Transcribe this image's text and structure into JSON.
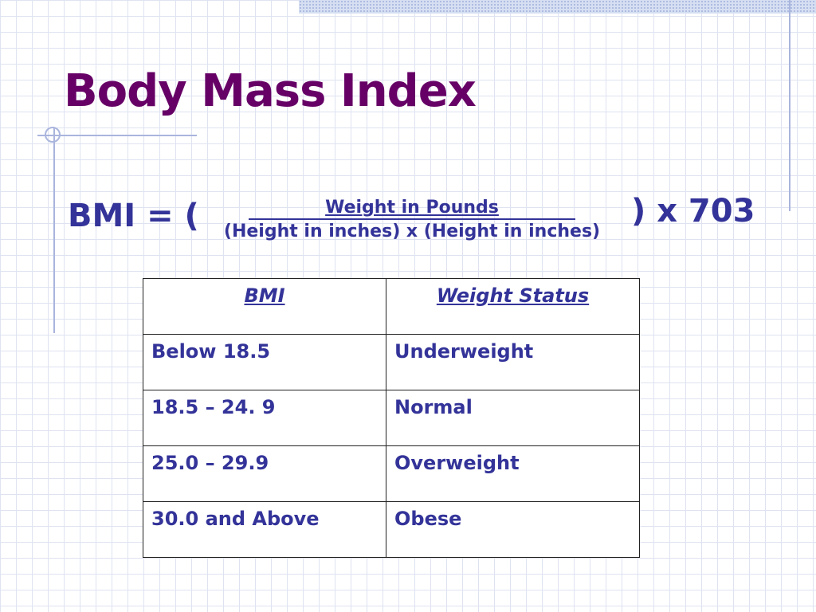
{
  "title": "Body Mass Index",
  "formula": {
    "lhs": "BMI = (",
    "numerator": "Weight in Pounds",
    "denominator": "(Height in inches) x (Height in inches)",
    "rhs": ") x 703"
  },
  "table": {
    "headers": [
      "BMI",
      "Weight Status"
    ],
    "rows": [
      [
        "Below 18.5",
        "Underweight"
      ],
      [
        "18.5 – 24. 9",
        "Normal"
      ],
      [
        "25.0 – 29.9",
        "Overweight"
      ],
      [
        "30.0 and Above",
        "Obese"
      ]
    ]
  },
  "colors": {
    "title": "#660066",
    "text": "#333399",
    "grid": "#dfe3f1",
    "accent_rule": "#aab5dd"
  }
}
